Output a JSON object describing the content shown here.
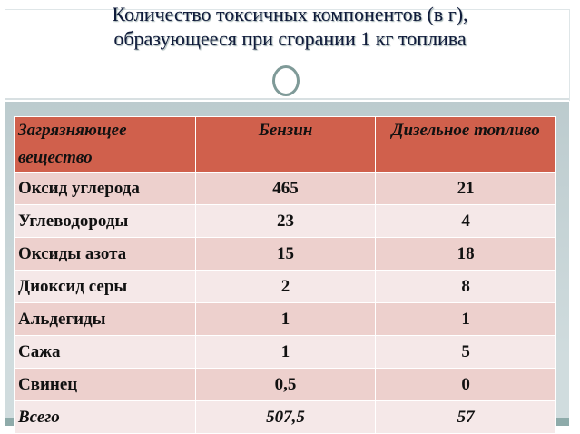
{
  "title_line1": "Количество токсичных компонентов (в г),",
  "title_line2": "образующееся при сгорании 1 кг топлива",
  "headers": [
    "Загрязняющее вещество",
    "Бензин",
    "Дизельное топливо"
  ],
  "rows": [
    [
      "Оксид углерода",
      "465",
      "21"
    ],
    [
      "Углеводороды",
      "23",
      "4"
    ],
    [
      "Оксиды азота",
      "15",
      "18"
    ],
    [
      "Диоксид серы",
      "2",
      "8"
    ],
    [
      "Альдегиды",
      "1",
      "1"
    ],
    [
      "Сажа",
      "1",
      "5"
    ],
    [
      "Свинец",
      "0,5",
      "0"
    ]
  ],
  "total": [
    "Всего",
    "507,5",
    "57"
  ]
}
